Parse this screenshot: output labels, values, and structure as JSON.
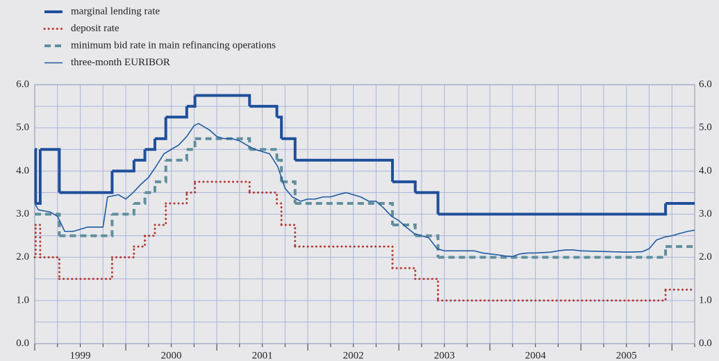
{
  "chart_data": {
    "type": "line",
    "xlim": [
      1999,
      2006.25
    ],
    "xticks": [
      {
        "value": 1999.5,
        "label": "1999"
      },
      {
        "value": 2000.5,
        "label": "2000"
      },
      {
        "value": 2001.5,
        "label": "2001"
      },
      {
        "value": 2002.5,
        "label": "2002"
      },
      {
        "value": 2003.5,
        "label": "2003"
      },
      {
        "value": 2004.5,
        "label": "2004"
      },
      {
        "value": 2005.5,
        "label": "2005"
      }
    ],
    "x_minor_ticks": [
      1999,
      1999.25,
      1999.5,
      1999.75,
      2000,
      2000.25,
      2000.5,
      2000.75,
      2001,
      2001.25,
      2001.5,
      2001.75,
      2002,
      2002.25,
      2002.5,
      2002.75,
      2003,
      2003.25,
      2003.5,
      2003.75,
      2004,
      2004.25,
      2004.5,
      2004.75,
      2005,
      2005.25,
      2005.5,
      2005.75,
      2006,
      2006.25
    ],
    "ylim": [
      0,
      6
    ],
    "yticks": [
      {
        "value": 0,
        "label": "0.0"
      },
      {
        "value": 1,
        "label": "1.0"
      },
      {
        "value": 2,
        "label": "2.0"
      },
      {
        "value": 3,
        "label": "3.0"
      },
      {
        "value": 4,
        "label": "4.0"
      },
      {
        "value": 5,
        "label": "5.0"
      },
      {
        "value": 6,
        "label": "6.0"
      }
    ],
    "y_minor_ticks": [
      0.5,
      1.5,
      2.5,
      3.5,
      4.5,
      5.5
    ],
    "grid": true,
    "legend": "top-left",
    "series": [
      {
        "name": "marginal lending rate",
        "color": "#1f4f9b",
        "style": "solid-thick",
        "step": true,
        "x": [
          1999,
          1999.01,
          1999.06,
          1999.27,
          1999.85,
          2000.09,
          2000.21,
          2000.32,
          2000.44,
          2000.67,
          2000.76,
          2001.36,
          2001.66,
          2001.71,
          2001.86,
          2002.93,
          2003.18,
          2003.43,
          2005.93,
          2006.25
        ],
        "values": [
          4.5,
          3.25,
          4.5,
          3.5,
          4.0,
          4.25,
          4.5,
          4.75,
          5.25,
          5.5,
          5.75,
          5.5,
          5.25,
          4.75,
          4.25,
          3.75,
          3.5,
          3.0,
          3.25,
          3.25
        ]
      },
      {
        "name": "deposit rate",
        "color": "#b23b36",
        "style": "dotted",
        "step": true,
        "x": [
          1999,
          1999.01,
          1999.06,
          1999.27,
          1999.85,
          2000.09,
          2000.21,
          2000.32,
          2000.44,
          2000.67,
          2000.76,
          2001.36,
          2001.66,
          2001.71,
          2001.86,
          2002.93,
          2003.18,
          2003.43,
          2005.93,
          2006.25
        ],
        "values": [
          2.0,
          2.75,
          2.0,
          1.5,
          2.0,
          2.25,
          2.5,
          2.75,
          3.25,
          3.5,
          3.75,
          3.5,
          3.25,
          2.75,
          2.25,
          1.75,
          1.5,
          1.0,
          1.25,
          1.25
        ]
      },
      {
        "name": "minimum bid rate in main refinancing operations",
        "color": "#5f8f9c",
        "style": "dashed",
        "step": true,
        "x": [
          1999,
          1999.27,
          1999.85,
          2000.09,
          2000.21,
          2000.32,
          2000.44,
          2000.67,
          2000.76,
          2001.36,
          2001.66,
          2001.71,
          2001.86,
          2002.93,
          2003.18,
          2003.43,
          2005.93,
          2006.25
        ],
        "values": [
          3.0,
          2.5,
          3.0,
          3.25,
          3.5,
          3.75,
          4.25,
          4.5,
          4.75,
          4.5,
          4.25,
          3.75,
          3.25,
          2.75,
          2.5,
          2.0,
          2.25,
          2.25
        ]
      },
      {
        "name": "three-month EURIBOR",
        "color": "#1f5aa0",
        "style": "solid-thin",
        "step": false,
        "x": [
          1999,
          1999.04,
          1999.17,
          1999.25,
          1999.33,
          1999.42,
          1999.5,
          1999.58,
          1999.67,
          1999.75,
          1999.8,
          1999.92,
          2000,
          2000.08,
          2000.17,
          2000.25,
          2000.33,
          2000.42,
          2000.5,
          2000.58,
          2000.67,
          2000.75,
          2000.8,
          2000.92,
          2001,
          2001.08,
          2001.17,
          2001.25,
          2001.33,
          2001.42,
          2001.5,
          2001.58,
          2001.67,
          2001.75,
          2001.83,
          2001.92,
          2002,
          2002.08,
          2002.17,
          2002.25,
          2002.33,
          2002.42,
          2002.5,
          2002.58,
          2002.67,
          2002.75,
          2002.83,
          2002.92,
          2003,
          2003.08,
          2003.17,
          2003.25,
          2003.33,
          2003.42,
          2003.5,
          2003.58,
          2003.67,
          2003.75,
          2003.83,
          2003.92,
          2004,
          2004.08,
          2004.17,
          2004.25,
          2004.33,
          2004.42,
          2004.5,
          2004.58,
          2004.67,
          2004.75,
          2004.83,
          2004.92,
          2005,
          2005.17,
          2005.33,
          2005.5,
          2005.67,
          2005.75,
          2005.83,
          2005.92,
          2006,
          2006.08,
          2006.17,
          2006.25
        ],
        "values": [
          3.25,
          3.1,
          3.05,
          2.95,
          2.6,
          2.6,
          2.65,
          2.7,
          2.7,
          2.7,
          3.4,
          3.45,
          3.35,
          3.5,
          3.7,
          3.85,
          4.1,
          4.4,
          4.5,
          4.6,
          4.8,
          5.05,
          5.1,
          4.95,
          4.8,
          4.75,
          4.75,
          4.7,
          4.6,
          4.5,
          4.45,
          4.4,
          4.1,
          3.6,
          3.4,
          3.3,
          3.35,
          3.35,
          3.4,
          3.4,
          3.45,
          3.5,
          3.45,
          3.4,
          3.3,
          3.3,
          3.15,
          2.95,
          2.85,
          2.7,
          2.55,
          2.5,
          2.45,
          2.2,
          2.15,
          2.15,
          2.15,
          2.15,
          2.15,
          2.1,
          2.08,
          2.06,
          2.03,
          2.02,
          2.08,
          2.1,
          2.1,
          2.11,
          2.12,
          2.15,
          2.17,
          2.17,
          2.15,
          2.14,
          2.13,
          2.12,
          2.13,
          2.2,
          2.4,
          2.47,
          2.5,
          2.55,
          2.6,
          2.63
        ]
      }
    ]
  }
}
